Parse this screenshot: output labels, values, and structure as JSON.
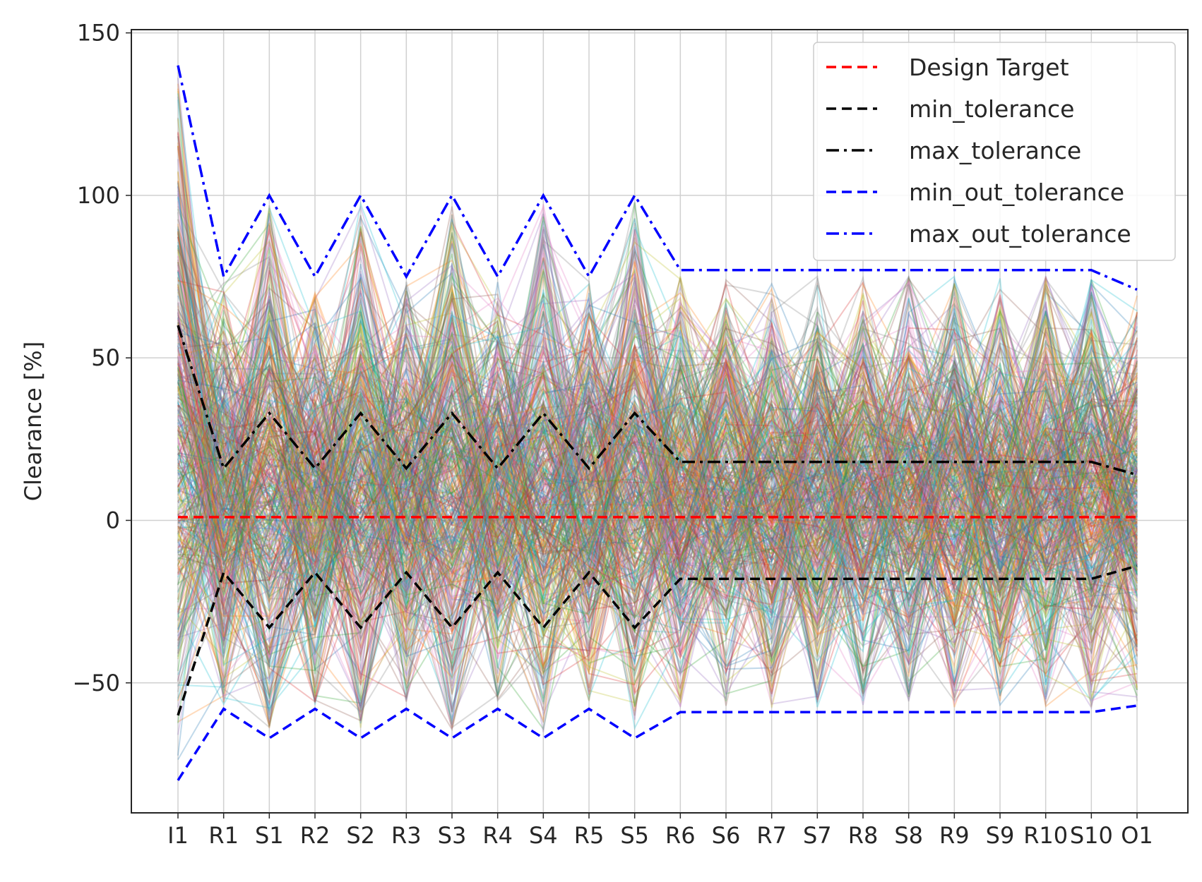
{
  "chart_data": {
    "type": "line",
    "title": "",
    "xlabel": "",
    "ylabel": "Clearance [%]",
    "categories": [
      "I1",
      "R1",
      "S1",
      "R2",
      "S2",
      "R3",
      "S3",
      "R4",
      "S4",
      "R5",
      "S5",
      "R6",
      "S6",
      "R7",
      "S7",
      "R8",
      "S8",
      "R9",
      "S9",
      "R10",
      "S10",
      "O1"
    ],
    "yticks": [
      {
        "value": -50,
        "label": "−50"
      },
      {
        "value": 0,
        "label": "0"
      },
      {
        "value": 50,
        "label": "50"
      },
      {
        "value": 100,
        "label": "100"
      },
      {
        "value": 150,
        "label": "150"
      }
    ],
    "ylim": [
      -90,
      151
    ],
    "grid": true,
    "legend_position": "top-right",
    "series": [
      {
        "name": "Design Target",
        "color": "#ff0000",
        "style": "dashed",
        "values": [
          1,
          1,
          1,
          1,
          1,
          1,
          1,
          1,
          1,
          1,
          1,
          1,
          1,
          1,
          1,
          1,
          1,
          1,
          1,
          1,
          1,
          1
        ]
      },
      {
        "name": "min_tolerance",
        "color": "#000000",
        "style": "dashed",
        "values": [
          -60,
          -16,
          -33,
          -16,
          -33,
          -16,
          -33,
          -16,
          -33,
          -16,
          -33,
          -18,
          -18,
          -18,
          -18,
          -18,
          -18,
          -18,
          -18,
          -18,
          -18,
          -14
        ]
      },
      {
        "name": "max_tolerance",
        "color": "#000000",
        "style": "dashdot",
        "values": [
          60,
          16,
          33,
          16,
          33,
          16,
          33,
          16,
          33,
          16,
          33,
          18,
          18,
          18,
          18,
          18,
          18,
          18,
          18,
          18,
          18,
          14
        ]
      },
      {
        "name": "min_out_tolerance",
        "color": "#0000ff",
        "style": "dashed",
        "values": [
          -80,
          -58,
          -67,
          -58,
          -67,
          -58,
          -67,
          -58,
          -67,
          -58,
          -67,
          -59,
          -59,
          -59,
          -59,
          -59,
          -59,
          -59,
          -59,
          -59,
          -59,
          -57
        ]
      },
      {
        "name": "max_out_tolerance",
        "color": "#0000ff",
        "style": "dashdot",
        "values": [
          140,
          75,
          100,
          75,
          100,
          75,
          100,
          75,
          100,
          75,
          100,
          77,
          77,
          77,
          77,
          77,
          77,
          77,
          77,
          77,
          77,
          71
        ]
      }
    ],
    "samples": {
      "description": "dense overlay of semi-transparent sample traces (many colors)",
      "palette": [
        "#1f77b4",
        "#ff7f0e",
        "#2ca02c",
        "#d62728",
        "#9467bd",
        "#8c564b",
        "#e377c2",
        "#7f7f7f",
        "#bcbd22",
        "#17becf"
      ]
    }
  }
}
